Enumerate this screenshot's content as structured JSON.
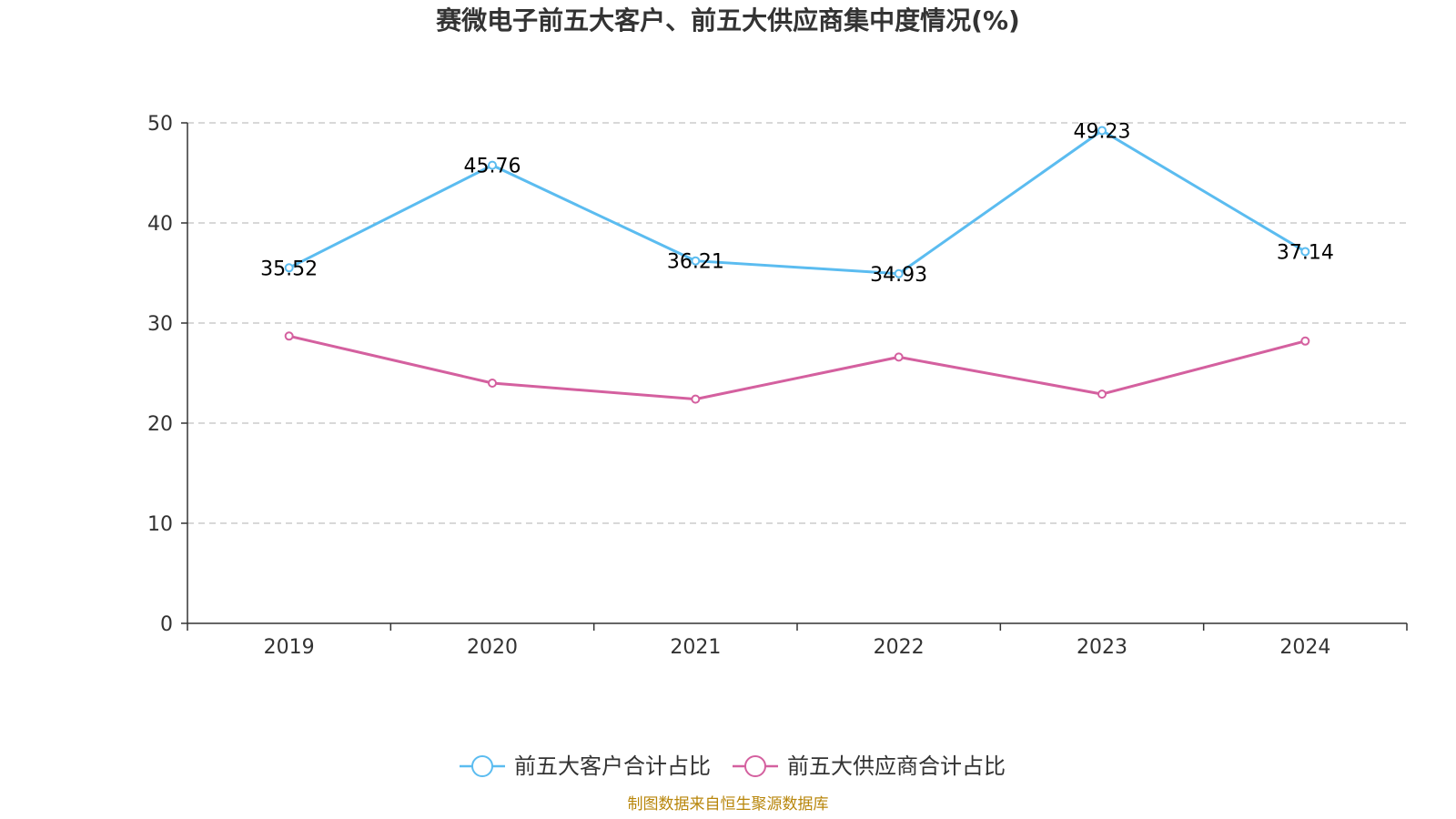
{
  "chart_data": {
    "type": "line",
    "title": "赛微电子前五大客户、前五大供应商集中度情况(%)",
    "categories": [
      "2019",
      "2020",
      "2021",
      "2022",
      "2023",
      "2024"
    ],
    "ylim": [
      0,
      50
    ],
    "yticks": [
      "0",
      "10",
      "20",
      "30",
      "40",
      "50"
    ],
    "grid": true,
    "legend_position": "bottom",
    "series": [
      {
        "name": "前五大客户合计占比",
        "color": "#5bbcf0",
        "values": [
          35.52,
          45.76,
          36.21,
          34.93,
          49.23,
          37.14
        ],
        "labels": [
          "35.52",
          "45.76",
          "36.21",
          "34.93",
          "49.23",
          "37.14"
        ]
      },
      {
        "name": "前五大供应商合计占比",
        "color": "#d4609f",
        "values": [
          28.7,
          24.0,
          22.4,
          26.6,
          22.9,
          28.2
        ]
      }
    ]
  },
  "footer": {
    "source": "制图数据来自恒生聚源数据库"
  }
}
